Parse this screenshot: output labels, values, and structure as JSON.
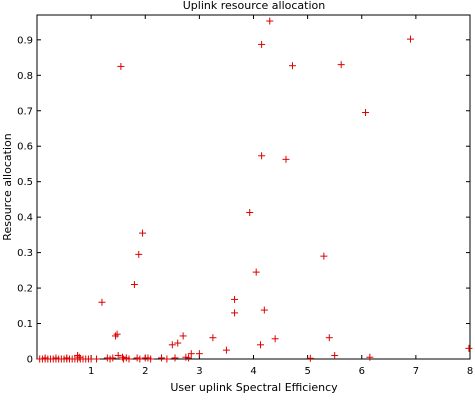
{
  "chart_data": {
    "type": "scatter",
    "title": "Uplink resource allocation",
    "xlabel": "User uplink Spectral Efficiency",
    "ylabel": "Resource allocation",
    "xlim": [
      0,
      8
    ],
    "ylim": [
      0,
      0.97
    ],
    "xticks": [
      "1",
      "2",
      "3",
      "4",
      "5",
      "6",
      "7",
      "8"
    ],
    "yticks": [
      "0",
      "0.1",
      "0.2",
      "0.3",
      "0.4",
      "0.5",
      "0.6",
      "0.7",
      "0.8",
      "0.9"
    ],
    "xtick_values": [
      1,
      2,
      3,
      4,
      5,
      6,
      7,
      8
    ],
    "ytick_values": [
      0,
      0.1,
      0.2,
      0.3,
      0.4,
      0.5,
      0.6,
      0.7,
      0.8,
      0.9
    ],
    "grid": false,
    "marker": "+",
    "marker_color": "#dd0000",
    "series": [
      {
        "points": [
          [
            1.2,
            0.16
          ],
          [
            1.45,
            0.065
          ],
          [
            1.48,
            0.07
          ],
          [
            1.5,
            0.01
          ],
          [
            1.55,
            0.825
          ],
          [
            1.58,
            0.005
          ],
          [
            1.8,
            0.21
          ],
          [
            1.88,
            0.295
          ],
          [
            1.95,
            0.355
          ],
          [
            2.5,
            0.04
          ],
          [
            2.6,
            0.045
          ],
          [
            2.7,
            0.065
          ],
          [
            2.85,
            0.015
          ],
          [
            3.0,
            0.015
          ],
          [
            3.25,
            0.06
          ],
          [
            3.5,
            0.025
          ],
          [
            3.65,
            0.13
          ],
          [
            3.65,
            0.168
          ],
          [
            3.93,
            0.413
          ],
          [
            4.05,
            0.245
          ],
          [
            4.13,
            0.04
          ],
          [
            4.15,
            0.887
          ],
          [
            4.15,
            0.573
          ],
          [
            4.2,
            0.138
          ],
          [
            4.3,
            0.953
          ],
          [
            4.4,
            0.057
          ],
          [
            4.6,
            0.563
          ],
          [
            4.72,
            0.827
          ],
          [
            5.05,
            0.002
          ],
          [
            5.3,
            0.29
          ],
          [
            5.4,
            0.06
          ],
          [
            5.5,
            0.01
          ],
          [
            5.62,
            0.83
          ],
          [
            6.07,
            0.695
          ],
          [
            6.15,
            0.005
          ],
          [
            6.9,
            0.902
          ],
          [
            7.98,
            0.03
          ],
          [
            0.05,
            0.0
          ],
          [
            0.1,
            0.0
          ],
          [
            0.15,
            0.0
          ],
          [
            0.2,
            0.0
          ],
          [
            0.25,
            0.0
          ],
          [
            0.3,
            0.0
          ],
          [
            0.35,
            0.0
          ],
          [
            0.4,
            0.0
          ],
          [
            0.45,
            0.0
          ],
          [
            0.5,
            0.0
          ],
          [
            0.55,
            0.0
          ],
          [
            0.6,
            0.0
          ],
          [
            0.65,
            0.0
          ],
          [
            0.7,
            0.0
          ],
          [
            0.75,
            0.0
          ],
          [
            0.8,
            0.0
          ],
          [
            0.85,
            0.0
          ],
          [
            0.9,
            0.0
          ],
          [
            0.95,
            0.0
          ],
          [
            1.0,
            0.0
          ],
          [
            1.1,
            0.0
          ],
          [
            1.3,
            0.003
          ],
          [
            1.35,
            0.0
          ],
          [
            1.4,
            0.003
          ],
          [
            1.6,
            0.0
          ],
          [
            1.65,
            0.003
          ],
          [
            1.7,
            0.0
          ],
          [
            1.85,
            0.003
          ],
          [
            1.9,
            0.0
          ],
          [
            2.0,
            0.003
          ],
          [
            2.05,
            0.003
          ],
          [
            2.1,
            0.0
          ],
          [
            2.3,
            0.003
          ],
          [
            2.4,
            0.0
          ],
          [
            2.55,
            0.003
          ],
          [
            2.75,
            0.005
          ],
          [
            2.8,
            0.003
          ],
          [
            0.15,
            0.003
          ],
          [
            0.35,
            0.003
          ],
          [
            0.55,
            0.003
          ],
          [
            0.75,
            0.01
          ],
          [
            0.78,
            0.005
          ]
        ]
      }
    ]
  }
}
